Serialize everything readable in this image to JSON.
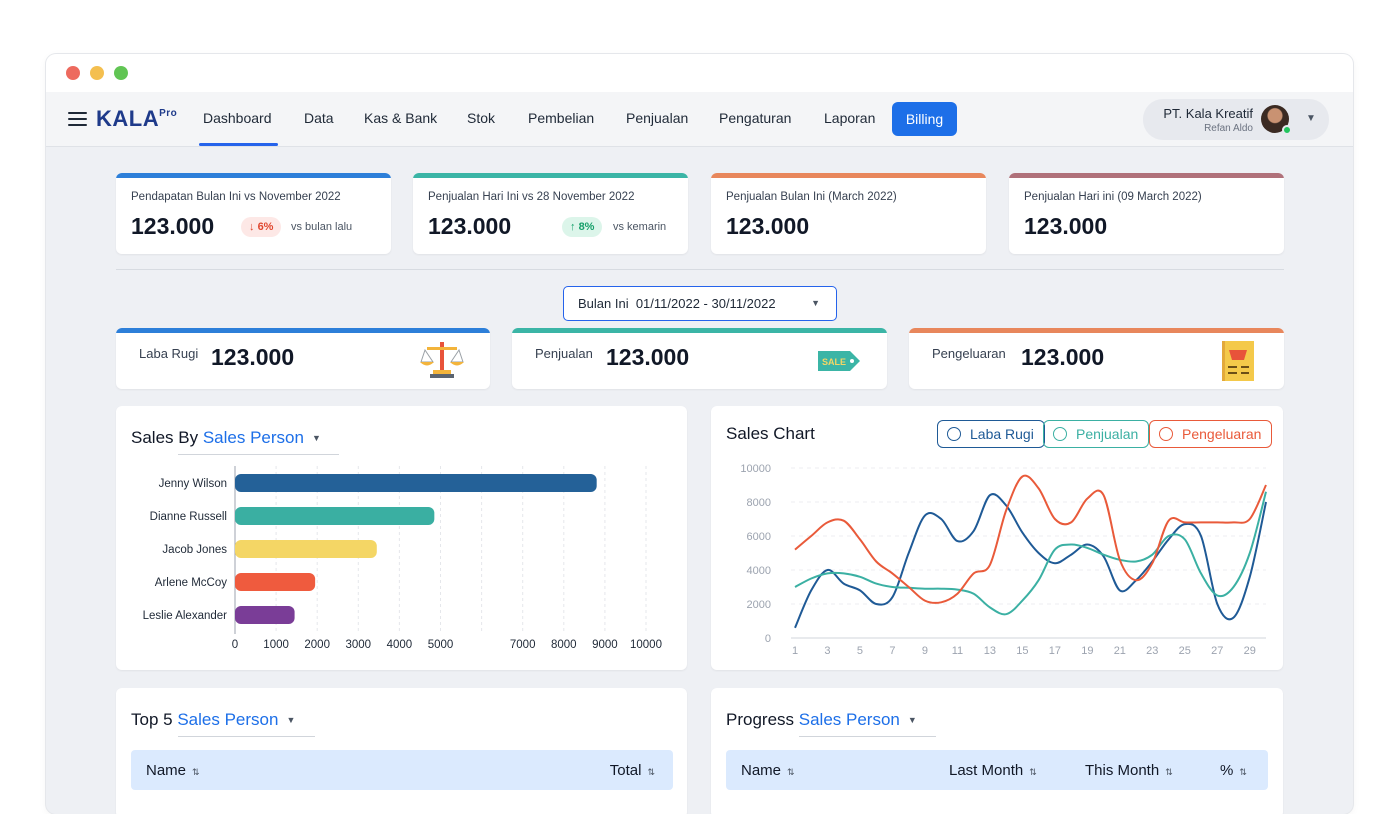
{
  "colors": {
    "blue": "#2d7fd9",
    "teal": "#3bb5a6",
    "orange": "#e8875c",
    "mauve": "#b0717a",
    "accent": "#1d6fe8",
    "bar_navy": "#246198",
    "bar_teal": "#3aafa2",
    "bar_yellow": "#f4d665",
    "bar_red": "#ef5b3e",
    "bar_purple": "#7a3d97",
    "line_laba": "#1f5a96",
    "line_penjualan": "#3bb0a3",
    "line_pengeluaran": "#e95a3a"
  },
  "window": {
    "dots": [
      "#ed6a5e",
      "#f4bf4f",
      "#61c554"
    ]
  },
  "nav": {
    "logo": "KALA",
    "logo_sup": "Pro",
    "menu_icon": "hamburger-menu-icon",
    "items": [
      "Dashboard",
      "Data",
      "Kas & Bank",
      "Stok",
      "Pembelian",
      "Penjualan",
      "Pengaturan",
      "Laporan"
    ],
    "billing": "Billing",
    "profile_name": "PT. Kala Kreatif",
    "profile_sub": "Refan Aldo"
  },
  "stats": [
    {
      "label": "Pendapatan Bulan Ini vs November 2022",
      "value": "123.000",
      "badge": "6%",
      "badge_dir": "down",
      "note": "vs bulan lalu"
    },
    {
      "label": "Penjualan Hari Ini vs 28 November 2022",
      "value": "123.000",
      "badge": "8%",
      "badge_dir": "up",
      "note": "vs kemarin"
    },
    {
      "label": "Penjualan Bulan Ini (March 2022)",
      "value": "123.000"
    },
    {
      "label": "Penjualan Hari ini (09 March 2022)",
      "value": "123.000"
    }
  ],
  "daterange": {
    "label": "Bulan Ini",
    "range": "01/11/2022 - 30/11/2022"
  },
  "summary": [
    {
      "label": "Laba Rugi",
      "value": "123.000",
      "icon": "balance-scale-icon"
    },
    {
      "label": "Penjualan",
      "value": "123.000",
      "icon": "sale-tag-icon"
    },
    {
      "label": "Pengeluaran",
      "value": "123.000",
      "icon": "receipt-basket-icon"
    }
  ],
  "sales_by": {
    "title_prefix": "Sales By",
    "title_link": "Sales Person"
  },
  "sales_chart_title": "Sales Chart",
  "top5": {
    "title_prefix": "Top 5",
    "title_link": "Sales Person",
    "columns": [
      "Name",
      "Total"
    ]
  },
  "progress": {
    "title_prefix": "Progress",
    "title_link": "Sales Person",
    "columns": [
      "Name",
      "Last Month",
      "This Month",
      "%"
    ]
  },
  "chart_data": [
    {
      "type": "bar",
      "orientation": "horizontal",
      "title": "Sales By Sales Person",
      "categories": [
        "Jenny Wilson",
        "Dianne Russell",
        "Jacob Jones",
        "Arlene McCoy",
        "Leslie Alexander"
      ],
      "values": [
        8800,
        4850,
        3450,
        1950,
        1450
      ],
      "xlim": [
        0,
        10000
      ],
      "xticks": [
        0,
        1000,
        2000,
        3000,
        4000,
        5000,
        7000,
        8000,
        9000,
        10000
      ],
      "grid": true
    },
    {
      "type": "line",
      "title": "Sales Chart",
      "x": [
        1,
        2,
        3,
        4,
        5,
        6,
        7,
        8,
        9,
        10,
        11,
        12,
        13,
        14,
        15,
        16,
        17,
        18,
        19,
        20,
        21,
        22,
        23,
        24,
        25,
        26,
        27,
        28,
        29,
        30
      ],
      "xticks": [
        1,
        3,
        5,
        7,
        9,
        11,
        13,
        15,
        17,
        19,
        21,
        23,
        25,
        27,
        29
      ],
      "ylim": [
        0,
        10000
      ],
      "yticks": [
        0,
        2000,
        4000,
        6000,
        8000,
        10000
      ],
      "series": [
        {
          "name": "Laba Rugi",
          "values": [
            600,
            2800,
            4000,
            3200,
            2800,
            2000,
            2400,
            5000,
            7200,
            7000,
            5700,
            6300,
            8400,
            7800,
            6200,
            5000,
            4400,
            4900,
            5500,
            4800,
            2800,
            3400,
            4500,
            5800,
            6700,
            6000,
            2000,
            1200,
            3600,
            8000
          ]
        },
        {
          "name": "Penjualan",
          "values": [
            3000,
            3500,
            3800,
            3800,
            3600,
            3200,
            3000,
            2950,
            2900,
            2900,
            2850,
            2600,
            1800,
            1400,
            2200,
            3400,
            5200,
            5500,
            5300,
            4900,
            4600,
            4500,
            4900,
            6000,
            5800,
            3800,
            2500,
            3000,
            5000,
            8600
          ]
        },
        {
          "name": "Pengeluaran",
          "values": [
            5200,
            6000,
            6800,
            6900,
            5800,
            4500,
            3800,
            3000,
            2200,
            2100,
            2600,
            3800,
            4300,
            7500,
            9500,
            8800,
            7000,
            6800,
            8200,
            8400,
            4600,
            3400,
            4400,
            6900,
            6800,
            6800,
            6800,
            6800,
            7000,
            9000
          ]
        }
      ]
    }
  ]
}
